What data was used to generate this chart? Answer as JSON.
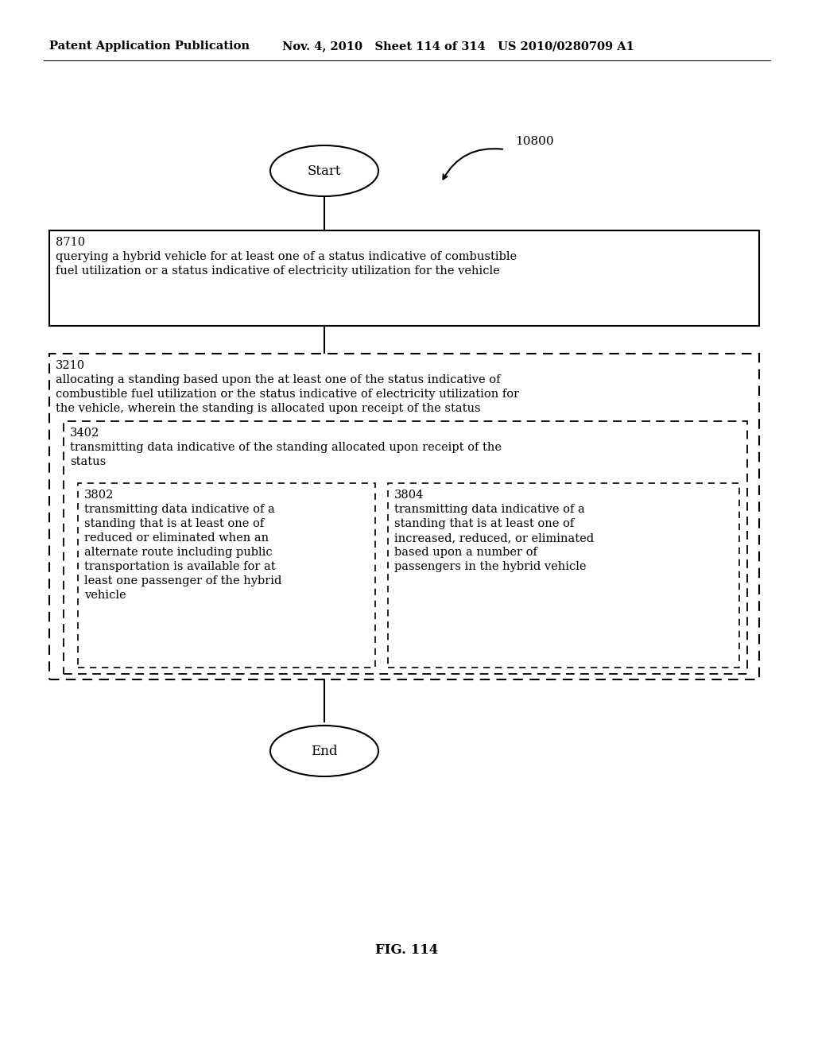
{
  "background_color": "#ffffff",
  "header_left": "Patent Application Publication",
  "header_mid": "Nov. 4, 2010   Sheet 114 of 314   US 2010/0280709 A1",
  "fig_label": "FIG. 114",
  "diagram_label": "10800",
  "start_label": "Start",
  "end_label": "End",
  "box8710_id": "8710",
  "box8710_line1": "querying a hybrid vehicle for at least one of a status indicative of combustible",
  "box8710_line2": "fuel utilization or a status indicative of electricity utilization for the vehicle",
  "box3210_id": "3210",
  "box3210_line1": "allocating a standing based upon the at least one of the status indicative of",
  "box3210_line2": "combustible fuel utilization or the status indicative of electricity utilization for",
  "box3210_line3": "the vehicle, wherein the standing is allocated upon receipt of the status",
  "box3402_id": "3402",
  "box3402_line1": "transmitting data indicative of the standing allocated upon receipt of the",
  "box3402_line2": "status",
  "box3802_id": "3802",
  "box3802_line1": "transmitting data indicative of a",
  "box3802_line2": "standing that is at least one of",
  "box3802_line3": "reduced or eliminated when an",
  "box3802_line4": "alternate route including public",
  "box3802_line5": "transportation is available for at",
  "box3802_line6": "least one passenger of the hybrid",
  "box3802_line7": "vehicle",
  "box3804_id": "3804",
  "box3804_line1": "transmitting data indicative of a",
  "box3804_line2": "standing that is at least one of",
  "box3804_line3": "increased, reduced, or eliminated",
  "box3804_line4": "based upon a number of",
  "box3804_line5": "passengers in the hybrid vehicle",
  "text_color": "#000000"
}
